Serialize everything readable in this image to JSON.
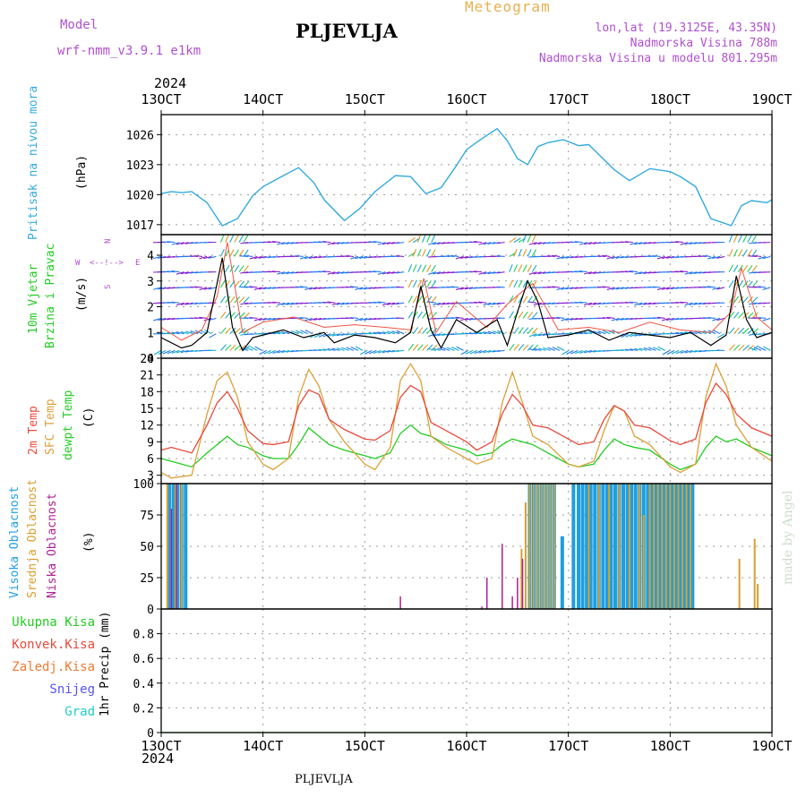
{
  "header": {
    "model_label": "Model",
    "model_name": "wrf-nmm_v3.9.1  e1km",
    "title": "PLJEVLJA",
    "meteogram_label": "Meteogram",
    "lonlat": "lon,lat (19.3125E, 43.35N)",
    "elevation": "Nadmorska Visina 788m",
    "model_elevation": "Nadmorska Visina u modelu 801.295m"
  },
  "footer": {
    "station": "PLJEVLJA",
    "credit": "made by Angel"
  },
  "colors": {
    "pressure": "#33aadd",
    "temp2m": "#e84a3c",
    "sfc": "#dda03a",
    "dewpt": "#22cc22",
    "high_cloud": "#1e9ee0",
    "mid_cloud": "#d8a030",
    "low_cloud": "#b02090",
    "wind_speed": "#000000",
    "wind_gust": "#ee5544",
    "compass": "#b050d0"
  },
  "time_axis": {
    "year": "2024",
    "ticks": [
      "13OCT",
      "14OCT",
      "15OCT",
      "16OCT",
      "17OCT",
      "18OCT",
      "19OCT"
    ],
    "start_day": 13,
    "end_day": 19
  },
  "panels": {
    "pressure": {
      "ylabel_main": "Pritisak na nivou mora",
      "unit": "(hPa)"
    },
    "wind": {
      "ylabel_line1": "10m Vjetar",
      "ylabel_line2": "Brzina i Pravac",
      "unit": "(m/s)",
      "compass_w": "W",
      "compass_e": "E",
      "compass_n": "N",
      "compass_s": "S"
    },
    "temp": {
      "label_2m": "2m Temp",
      "label_sfc": "SFC Temp",
      "label_dew": "dewpt Temp",
      "unit": "(C)"
    },
    "cloud": {
      "label_high": "Visoka Oblacnost",
      "label_mid": "Srednja Oblacnost",
      "label_low": "Niska Oblacnost",
      "unit": "(%)"
    },
    "precip": {
      "label_total": "Ukupna Kisa",
      "label_conv": "Konvek.Kisa",
      "label_frz": "Zaledj.Kisa",
      "label_snow": "Snijeg",
      "label_grad": "Grad",
      "unit": "1hr Precip (mm)"
    }
  },
  "chart_data": [
    {
      "type": "line",
      "series": [
        {
          "name": "Pritisak na nivou mora",
          "x": [
            13.0,
            13.1,
            13.2,
            13.3,
            13.45,
            13.6,
            13.75,
            13.9,
            14.0,
            14.2,
            14.35,
            14.5,
            14.6,
            14.8,
            14.95,
            15.1,
            15.3,
            15.45,
            15.6,
            15.75,
            15.9,
            16.0,
            16.15,
            16.3,
            16.4,
            16.5,
            16.6,
            16.7,
            16.8,
            16.95,
            17.1,
            17.2,
            17.3,
            17.45,
            17.6,
            17.8,
            18.0,
            18.1,
            18.25,
            18.4,
            18.6,
            18.7,
            18.8,
            18.95,
            19.0
          ],
          "y": [
            1020.1,
            1020.3,
            1020.2,
            1020.3,
            1019.2,
            1016.9,
            1017.6,
            1019.9,
            1020.8,
            1021.9,
            1022.7,
            1021.2,
            1019.5,
            1017.4,
            1018.6,
            1020.3,
            1021.9,
            1021.8,
            1020.1,
            1020.7,
            1022.9,
            1024.5,
            1025.6,
            1026.6,
            1025.4,
            1023.6,
            1023.0,
            1024.8,
            1025.2,
            1025.5,
            1024.9,
            1025.0,
            1024.0,
            1022.5,
            1021.4,
            1022.6,
            1022.3,
            1021.8,
            1020.8,
            1017.6,
            1016.9,
            1018.9,
            1019.4,
            1019.2,
            1019.5
          ]
        }
      ],
      "ylim": [
        1016,
        1028
      ],
      "yticks": [
        1017,
        1020,
        1023,
        1026
      ]
    },
    {
      "type": "line",
      "series": [
        {
          "name": "10m Vjetar",
          "x": [
            13.0,
            13.2,
            13.3,
            13.45,
            13.6,
            13.7,
            13.8,
            13.9,
            14.0,
            14.2,
            14.4,
            14.6,
            14.7,
            14.9,
            15.1,
            15.3,
            15.45,
            15.55,
            15.65,
            15.75,
            15.9,
            16.1,
            16.3,
            16.4,
            16.5,
            16.6,
            16.7,
            16.8,
            17.0,
            17.2,
            17.4,
            17.6,
            17.8,
            18.0,
            18.2,
            18.4,
            18.55,
            18.65,
            18.75,
            18.85,
            19.0
          ],
          "y": [
            0.8,
            0.4,
            0.5,
            1.0,
            3.9,
            1.2,
            0.3,
            0.8,
            0.9,
            1.1,
            0.8,
            1.0,
            0.6,
            0.9,
            0.8,
            0.6,
            1.0,
            2.8,
            1.1,
            0.4,
            1.5,
            1.0,
            1.5,
            0.5,
            1.8,
            3.0,
            2.2,
            0.8,
            0.9,
            1.1,
            0.7,
            1.0,
            0.9,
            0.8,
            1.0,
            0.5,
            0.9,
            3.2,
            1.5,
            0.8,
            1.0
          ]
        },
        {
          "name": "",
          "x": [
            13.0,
            13.2,
            13.4,
            13.55,
            13.65,
            13.8,
            14.0,
            14.3,
            14.6,
            14.9,
            15.2,
            15.45,
            15.58,
            15.7,
            15.9,
            16.2,
            16.4,
            16.55,
            16.65,
            16.9,
            17.2,
            17.5,
            17.8,
            18.1,
            18.4,
            18.6,
            18.7,
            18.85,
            19.0
          ],
          "y": [
            1.2,
            0.7,
            1.1,
            2.4,
            4.5,
            1.0,
            1.4,
            1.6,
            1.2,
            1.3,
            1.2,
            1.1,
            3.1,
            1.0,
            2.2,
            1.2,
            2.1,
            2.6,
            2.9,
            1.1,
            1.2,
            1.0,
            1.4,
            1.1,
            1.0,
            1.8,
            3.5,
            1.6,
            1.1
          ]
        }
      ],
      "ylim": [
        0,
        4.8
      ],
      "yticks": [
        0,
        1,
        2,
        3,
        4
      ]
    },
    {
      "type": "line",
      "series": [
        {
          "name": "2m Temp",
          "x": [
            13.0,
            13.1,
            13.3,
            13.45,
            13.55,
            13.65,
            13.75,
            13.85,
            14.0,
            14.1,
            14.25,
            14.35,
            14.45,
            14.55,
            14.65,
            14.8,
            15.0,
            15.1,
            15.25,
            15.35,
            15.45,
            15.55,
            15.65,
            15.8,
            16.0,
            16.1,
            16.25,
            16.35,
            16.45,
            16.55,
            16.65,
            16.8,
            17.0,
            17.1,
            17.25,
            17.35,
            17.45,
            17.55,
            17.65,
            17.8,
            18.0,
            18.1,
            18.25,
            18.35,
            18.45,
            18.55,
            18.65,
            18.8,
            19.0
          ],
          "y": [
            7.5,
            8.0,
            7.0,
            12.0,
            16.0,
            18.0,
            15.0,
            11.0,
            8.7,
            8.5,
            9.0,
            15.5,
            18.3,
            17.5,
            13.0,
            11.2,
            9.5,
            9.3,
            11.0,
            17.0,
            19.1,
            18.0,
            12.5,
            11.0,
            9.0,
            7.5,
            9.0,
            14.0,
            17.5,
            15.5,
            12.0,
            11.5,
            9.5,
            8.5,
            9.0,
            13.0,
            15.5,
            14.5,
            12.0,
            11.5,
            9.2,
            8.5,
            9.5,
            16.0,
            19.5,
            17.5,
            14.0,
            11.5,
            10.0
          ]
        },
        {
          "name": "SFC Temp",
          "x": [
            13.0,
            13.1,
            13.3,
            13.45,
            13.55,
            13.65,
            13.75,
            13.85,
            14.0,
            14.1,
            14.25,
            14.35,
            14.45,
            14.55,
            14.65,
            14.8,
            15.0,
            15.1,
            15.25,
            15.35,
            15.45,
            15.55,
            15.65,
            15.8,
            16.0,
            16.1,
            16.25,
            16.35,
            16.45,
            16.55,
            16.65,
            16.8,
            17.0,
            17.1,
            17.25,
            17.35,
            17.45,
            17.55,
            17.65,
            17.8,
            18.0,
            18.1,
            18.25,
            18.35,
            18.45,
            18.55,
            18.65,
            18.8,
            19.0
          ],
          "y": [
            3.5,
            2.5,
            3.0,
            14.0,
            20.0,
            21.5,
            17.0,
            9.0,
            5.0,
            4.0,
            6.0,
            17.0,
            22.0,
            19.0,
            13.0,
            9.0,
            5.0,
            4.0,
            8.0,
            20.0,
            23.0,
            20.0,
            10.0,
            8.0,
            6.0,
            5.0,
            6.0,
            16.0,
            21.5,
            16.0,
            10.0,
            8.5,
            5.0,
            4.5,
            5.5,
            11.0,
            15.5,
            14.5,
            10.0,
            8.5,
            4.5,
            3.5,
            5.0,
            17.0,
            23.0,
            19.0,
            12.0,
            8.0,
            5.5
          ]
        },
        {
          "name": "dewpt Temp",
          "x": [
            13.0,
            13.1,
            13.3,
            13.45,
            13.55,
            13.65,
            13.75,
            13.85,
            14.0,
            14.1,
            14.25,
            14.35,
            14.45,
            14.55,
            14.65,
            14.8,
            15.0,
            15.1,
            15.25,
            15.35,
            15.45,
            15.55,
            15.65,
            15.8,
            16.0,
            16.1,
            16.25,
            16.35,
            16.45,
            16.55,
            16.65,
            16.8,
            17.0,
            17.1,
            17.25,
            17.35,
            17.45,
            17.55,
            17.65,
            17.8,
            18.0,
            18.1,
            18.25,
            18.35,
            18.45,
            18.55,
            18.65,
            18.8,
            19.0
          ],
          "y": [
            6.0,
            5.5,
            4.5,
            7.0,
            8.5,
            10.0,
            8.5,
            8.0,
            6.5,
            6.0,
            6.0,
            8.5,
            11.5,
            10.0,
            8.5,
            7.5,
            6.5,
            6.0,
            7.0,
            10.5,
            12.0,
            10.5,
            10.0,
            8.5,
            7.5,
            6.5,
            7.0,
            8.5,
            9.5,
            9.0,
            8.5,
            7.0,
            5.0,
            4.5,
            5.0,
            7.5,
            9.5,
            8.5,
            8.0,
            7.5,
            5.0,
            4.0,
            5.0,
            8.0,
            10.0,
            9.0,
            9.5,
            8.0,
            6.5
          ]
        }
      ],
      "ylim": [
        1.5,
        24
      ],
      "yticks": [
        3,
        6,
        9,
        12,
        15,
        18,
        21,
        24
      ]
    },
    {
      "type": "bar",
      "series": [
        {
          "name": "Visoka Oblacnost",
          "x": [
            13.08,
            13.12,
            13.16,
            13.2,
            13.24,
            16.62,
            16.66,
            16.7,
            16.74,
            16.78,
            16.82,
            16.86,
            16.94,
            17.05,
            17.1,
            17.14,
            17.18,
            17.22,
            17.26,
            17.3,
            17.34,
            17.38,
            17.42,
            17.46,
            17.5,
            17.54,
            17.58,
            17.62,
            17.66,
            17.7,
            17.74,
            17.78,
            17.82,
            17.86,
            17.9,
            17.94,
            17.98,
            18.02,
            18.06,
            18.1,
            18.14,
            18.18,
            18.22
          ],
          "y": [
            100,
            100,
            100,
            100,
            100,
            100,
            100,
            100,
            100,
            100,
            100,
            100,
            58,
            100,
            100,
            100,
            100,
            100,
            100,
            100,
            100,
            100,
            100,
            100,
            100,
            100,
            100,
            100,
            100,
            100,
            100,
            100,
            100,
            100,
            100,
            100,
            100,
            100,
            100,
            100,
            100,
            100,
            100
          ]
        },
        {
          "name": "Srednja Oblacnost",
          "x": [
            13.06,
            13.14,
            13.2,
            16.54,
            16.58,
            16.62,
            16.66,
            16.7,
            16.74,
            16.78,
            16.82,
            16.86,
            17.2,
            17.3,
            17.4,
            17.5,
            17.6,
            17.7,
            17.74,
            17.8,
            17.84,
            17.88,
            17.92,
            17.96,
            18.0,
            18.04,
            18.08,
            18.12,
            18.16,
            18.2,
            18.68,
            18.83,
            18.86
          ],
          "y": [
            100,
            100,
            100,
            48,
            85,
            100,
            100,
            100,
            100,
            100,
            100,
            100,
            100,
            100,
            100,
            100,
            100,
            100,
            75,
            100,
            100,
            100,
            100,
            100,
            100,
            100,
            100,
            100,
            100,
            100,
            40,
            56,
            20
          ]
        },
        {
          "name": "Niska Oblacnost",
          "x": [
            13.1,
            13.15,
            15.35,
            16.15,
            16.2,
            16.35,
            16.45,
            16.5,
            16.55
          ],
          "y": [
            80,
            100,
            10,
            2,
            25,
            52,
            10,
            25,
            40
          ]
        }
      ],
      "ylim": [
        0,
        100
      ],
      "yticks": [
        0,
        25,
        50,
        75,
        100
      ]
    },
    {
      "type": "line",
      "series": [
        {
          "name": "Ukupna Kisa",
          "x": [
            13.0,
            19.0
          ],
          "y": [
            0,
            0
          ]
        }
      ],
      "ylim": [
        0,
        1.0
      ],
      "yticks": [
        0,
        0.2,
        0.4,
        0.6,
        0.8
      ]
    }
  ]
}
